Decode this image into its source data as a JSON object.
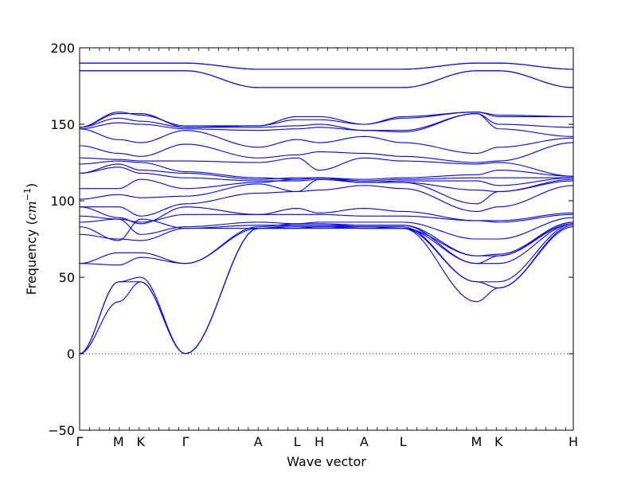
{
  "chart_data": {
    "type": "line",
    "title": "",
    "xlabel": "Wave vector",
    "ylabel_text": "Frequency (",
    "ylabel_unit_base": "cm",
    "ylabel_unit_exp": "−1",
    "ylabel_close": ")",
    "ylim": [
      -50,
      200
    ],
    "yticks": [
      -50,
      0,
      50,
      100,
      150,
      200
    ],
    "xlim": [
      0,
      12.44
    ],
    "k_points": [
      {
        "label": "Γ",
        "x": 0
      },
      {
        "label": "M",
        "x": 0.98
      },
      {
        "label": "K",
        "x": 1.54
      },
      {
        "label": "Γ",
        "x": 2.67
      },
      {
        "label": "A",
        "x": 4.5
      },
      {
        "label": "L",
        "x": 5.48
      },
      {
        "label": "H",
        "x": 6.04
      },
      {
        "label": "A",
        "x": 7.17
      },
      {
        "label": "L",
        "x": 8.15
      },
      {
        "label": "M",
        "x": 10.0
      },
      {
        "label": "K",
        "x": 10.56
      },
      {
        "label": "H",
        "x": 12.44
      }
    ],
    "zero_line": {
      "y": 0,
      "style": "dotted"
    },
    "line_color": "#0000ff",
    "series": [
      {
        "values": [
          0,
          34,
          47,
          0,
          82,
          82,
          82,
          82,
          82,
          34,
          43,
          83
        ]
      },
      {
        "values": [
          0,
          47,
          50,
          0,
          82,
          83,
          83,
          82,
          82,
          47,
          43,
          84
        ]
      },
      {
        "values": [
          0,
          47,
          47,
          0,
          82,
          84,
          84,
          83,
          83,
          47,
          47,
          85
        ]
      },
      {
        "values": [
          59,
          58,
          63,
          59,
          82,
          82,
          83,
          83,
          82,
          59,
          59,
          85
        ]
      },
      {
        "values": [
          59,
          66,
          66,
          59,
          83,
          85,
          85,
          84,
          84,
          59,
          64,
          85
        ]
      },
      {
        "values": [
          78,
          75,
          74,
          82,
          82,
          82,
          83,
          82,
          82,
          64,
          64,
          86
        ]
      },
      {
        "values": [
          83,
          74,
          88,
          82,
          84,
          84,
          84,
          84,
          84,
          64,
          65,
          86
        ]
      },
      {
        "values": [
          86,
          88,
          78,
          83,
          86,
          85,
          86,
          86,
          86,
          75,
          75,
          89
        ]
      },
      {
        "values": [
          90,
          88,
          86,
          91,
          91,
          91,
          91,
          90,
          90,
          87,
          86,
          91
        ]
      },
      {
        "values": [
          96,
          89,
          85,
          96,
          91,
          95,
          92,
          95,
          93,
          87,
          87,
          92
        ]
      },
      {
        "values": [
          96,
          96,
          90,
          98,
          105,
          106,
          107,
          110,
          108,
          93,
          96,
          110
        ]
      },
      {
        "values": [
          101,
          104,
          102,
          103,
          111,
          106,
          114,
          112,
          112,
          98,
          106,
          113
        ]
      },
      {
        "values": [
          108,
          108,
          114,
          108,
          112,
          114,
          115,
          112,
          112,
          107,
          106,
          114
        ]
      },
      {
        "values": [
          118,
          122,
          118,
          115,
          113,
          113,
          114,
          112,
          113,
          113,
          110,
          115
        ]
      },
      {
        "values": [
          118,
          124,
          120,
          118,
          114,
          115,
          115,
          113,
          114,
          115,
          115,
          115
        ]
      },
      {
        "values": [
          124,
          126,
          125,
          119,
          115,
          114,
          115,
          114,
          115,
          117,
          120,
          116
        ]
      },
      {
        "values": [
          128,
          127,
          126,
          126,
          125,
          128,
          120,
          128,
          126,
          124,
          125,
          116
        ]
      },
      {
        "values": [
          136,
          131,
          129,
          137,
          128,
          130,
          132,
          131,
          129,
          125,
          126,
          138
        ]
      },
      {
        "values": [
          147,
          140,
          138,
          146,
          135,
          140,
          138,
          142,
          138,
          131,
          135,
          141
        ]
      },
      {
        "values": [
          147,
          151,
          150,
          147,
          146,
          147,
          148,
          146,
          145,
          157,
          147,
          142
        ]
      },
      {
        "values": [
          148,
          154,
          152,
          148,
          148,
          149,
          150,
          146,
          146,
          157,
          150,
          148
        ]
      },
      {
        "values": [
          148,
          157,
          157,
          148,
          149,
          153,
          153,
          150,
          154,
          158,
          155,
          155
        ]
      },
      {
        "values": [
          148,
          158,
          156,
          149,
          149,
          155,
          155,
          150,
          155,
          158,
          156,
          155
        ]
      },
      {
        "values": [
          185,
          185,
          185,
          185,
          174,
          174,
          174,
          174,
          174,
          185,
          185,
          174
        ]
      },
      {
        "values": [
          185,
          185,
          185,
          185,
          174,
          174,
          174,
          174,
          174,
          185,
          185,
          174
        ]
      },
      {
        "values": [
          190,
          190,
          190,
          190,
          186,
          186,
          186,
          186,
          186,
          190,
          190,
          186
        ]
      },
      {
        "values": [
          190,
          190,
          190,
          190,
          186,
          186,
          186,
          186,
          186,
          190,
          190,
          186
        ]
      }
    ]
  }
}
